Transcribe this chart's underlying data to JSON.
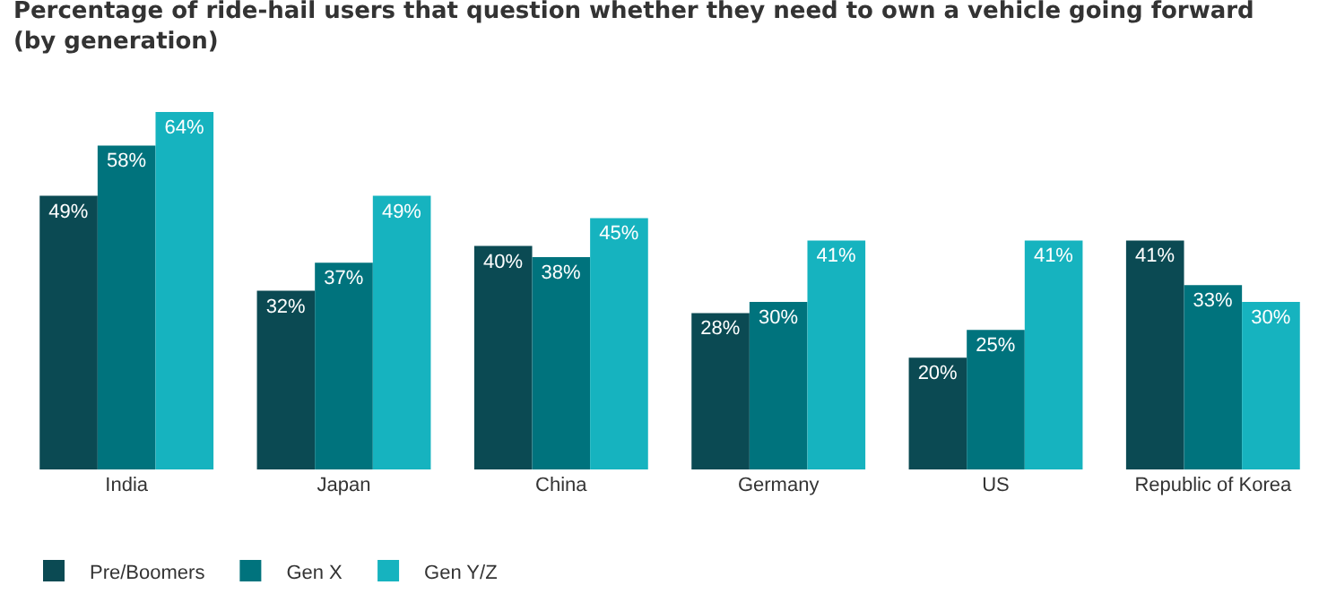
{
  "chart_data": {
    "type": "bar",
    "title": "Percentage of ride-hail users that question whether they need to own a vehicle going forward\n(by generation)",
    "categories": [
      "India",
      "Japan",
      "China",
      "Germany",
      "US",
      "Republic of Korea"
    ],
    "series": [
      {
        "name": "Pre/Boomers",
        "color": "#0b4a53",
        "values": [
          49,
          32,
          40,
          28,
          20,
          41
        ],
        "value_labels": [
          "49%",
          "32%",
          "40%",
          "28%",
          "20%",
          "41%"
        ]
      },
      {
        "name": "Gen X",
        "color": "#00737d",
        "values": [
          58,
          37,
          38,
          30,
          25,
          33
        ],
        "value_labels": [
          "58%",
          "37%",
          "38%",
          "30%",
          "25%",
          "33%"
        ]
      },
      {
        "name": "Gen Y/Z",
        "color": "#16b3bf",
        "values": [
          64,
          49,
          45,
          41,
          41,
          30
        ],
        "value_labels": [
          "64%",
          "49%",
          "45%",
          "41%",
          "41%",
          "30%"
        ]
      }
    ],
    "grid": false,
    "legend": "bottom left"
  }
}
